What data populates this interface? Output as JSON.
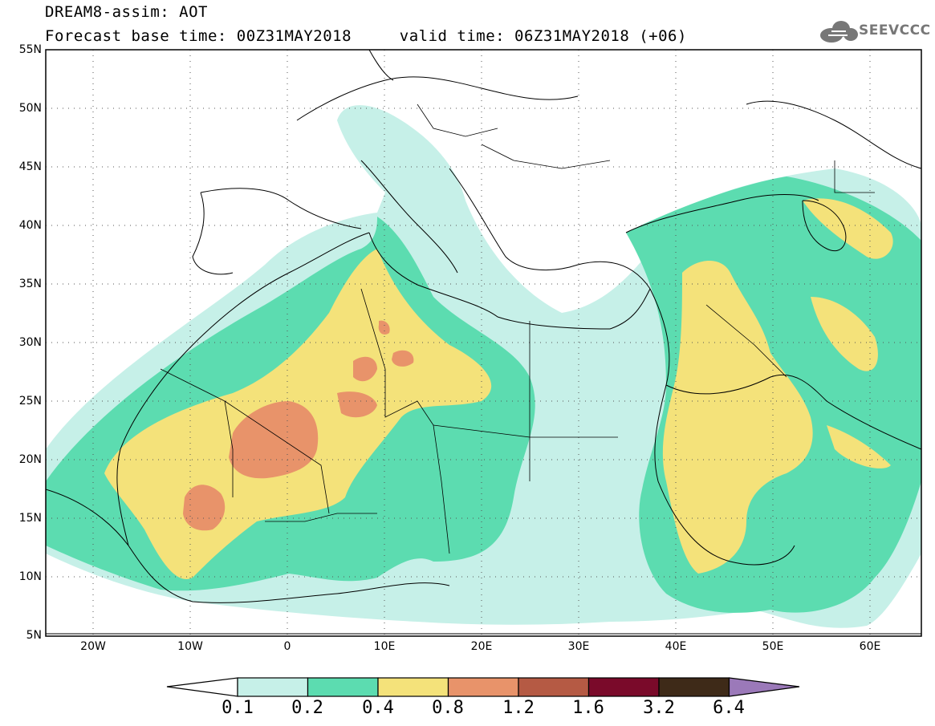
{
  "header": {
    "title": "DREAM8-assim: AOT",
    "base_label": "Forecast base time: 00Z31MAY2018",
    "valid_label": "valid time: 06Z31MAY2018 (+06)"
  },
  "logo": {
    "text": "SEEVCCC",
    "icon": "cloud-icon"
  },
  "map": {
    "extent": {
      "lon": [
        -25,
        65
      ],
      "lat": [
        5,
        55
      ]
    },
    "lat_ticks": [
      "55N",
      "50N",
      "45N",
      "40N",
      "35N",
      "30N",
      "25N",
      "20N",
      "15N",
      "10N",
      "5N"
    ],
    "lon_ticks": [
      "20W",
      "10W",
      "0",
      "10E",
      "20E",
      "30E",
      "40E",
      "50E",
      "60E"
    ],
    "grid": "dotted"
  },
  "colorbar": {
    "labels": [
      "0.1",
      "0.2",
      "0.4",
      "0.8",
      "1.2",
      "1.6",
      "3.2",
      "6.4"
    ],
    "colors": [
      "#c6f0e8",
      "#5cdcb0",
      "#f4e27a",
      "#e8936a",
      "#b55a44",
      "#7a0a2a",
      "#3e2a18",
      "#9b79b9"
    ]
  }
}
